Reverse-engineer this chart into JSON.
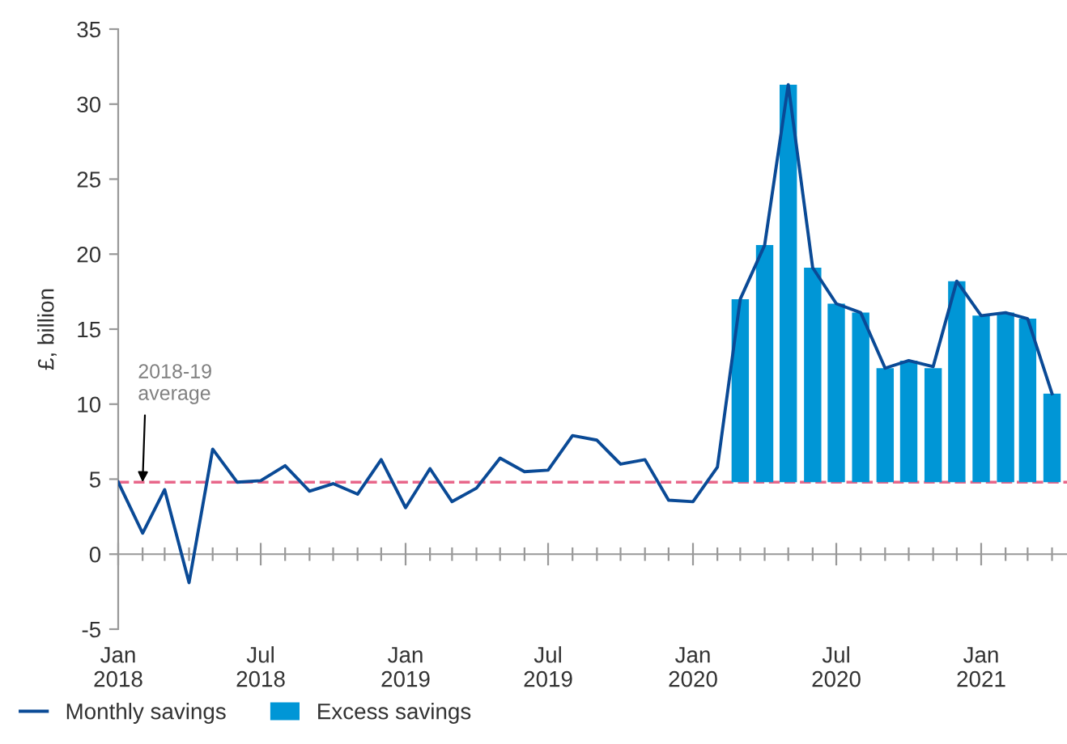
{
  "chart_data": {
    "type": "line",
    "ylabel": "£, billion",
    "x": [
      "2018-01",
      "2018-02",
      "2018-03",
      "2018-04",
      "2018-05",
      "2018-06",
      "2018-07",
      "2018-08",
      "2018-09",
      "2018-10",
      "2018-11",
      "2018-12",
      "2019-01",
      "2019-02",
      "2019-03",
      "2019-04",
      "2019-05",
      "2019-06",
      "2019-07",
      "2019-08",
      "2019-09",
      "2019-10",
      "2019-11",
      "2019-12",
      "2020-01",
      "2020-02",
      "2020-03",
      "2020-04",
      "2020-05",
      "2020-06",
      "2020-07",
      "2020-08",
      "2020-09",
      "2020-10",
      "2020-11",
      "2020-12",
      "2021-01",
      "2021-02",
      "2021-03",
      "2021-04"
    ],
    "series": [
      {
        "name": "Excess savings",
        "type": "bar",
        "color": "#0096d6",
        "x": [
          "2020-03",
          "2020-04",
          "2020-05",
          "2020-06",
          "2020-07",
          "2020-08",
          "2020-09",
          "2020-10",
          "2020-11",
          "2020-12",
          "2021-01",
          "2021-02",
          "2021-03",
          "2021-04"
        ],
        "base": [
          4.8,
          4.8,
          4.8,
          4.8,
          4.8,
          4.8,
          4.8,
          4.8,
          4.8,
          4.8,
          4.8,
          4.8,
          4.8,
          4.8
        ],
        "values": [
          12.2,
          15.8,
          26.5,
          14.3,
          11.9,
          11.3,
          7.6,
          8.1,
          7.6,
          13.4,
          11.1,
          11.3,
          10.9,
          5.9
        ]
      },
      {
        "name": "Monthly savings",
        "color": "#0a4a96",
        "values": [
          4.8,
          1.4,
          4.3,
          -1.9,
          7.0,
          4.8,
          4.9,
          5.9,
          4.2,
          4.7,
          4.0,
          6.3,
          3.1,
          5.7,
          3.5,
          4.4,
          6.4,
          5.5,
          5.6,
          7.9,
          7.6,
          6.0,
          6.3,
          3.6,
          3.5,
          5.8,
          17.0,
          20.6,
          31.3,
          19.1,
          16.7,
          16.1,
          12.4,
          12.9,
          12.5,
          18.2,
          15.9,
          16.1,
          15.7,
          10.7
        ]
      }
    ],
    "ylim": [
      -5,
      35
    ],
    "yticks": [
      -5,
      0,
      5,
      10,
      15,
      20,
      25,
      30,
      35
    ],
    "xlim": [
      "2018-01",
      "2021-04-20"
    ],
    "xticks": [
      {
        "value": "2018-01",
        "label": "Jan\n2018"
      },
      {
        "value": "2018-02",
        "label": null
      },
      {
        "value": "2018-03",
        "label": null
      },
      {
        "value": "2018-04",
        "label": null
      },
      {
        "value": "2018-05",
        "label": null
      },
      {
        "value": "2018-06",
        "label": null
      },
      {
        "value": "2018-07",
        "label": "Jul\n2018"
      },
      {
        "value": "2018-08",
        "label": null
      },
      {
        "value": "2018-09",
        "label": null
      },
      {
        "value": "2018-10",
        "label": null
      },
      {
        "value": "2018-11",
        "label": null
      },
      {
        "value": "2018-12",
        "label": null
      },
      {
        "value": "2019-01",
        "label": "Jan\n2019"
      },
      {
        "value": "2019-02",
        "label": null
      },
      {
        "value": "2019-03",
        "label": null
      },
      {
        "value": "2019-04",
        "label": null
      },
      {
        "value": "2019-05",
        "label": null
      },
      {
        "value": "2019-06",
        "label": null
      },
      {
        "value": "2019-07",
        "label": "Jul\n2019"
      },
      {
        "value": "2019-08",
        "label": null
      },
      {
        "value": "2019-09",
        "label": null
      },
      {
        "value": "2019-10",
        "label": null
      },
      {
        "value": "2019-11",
        "label": null
      },
      {
        "value": "2019-12",
        "label": null
      },
      {
        "value": "2020-01",
        "label": "Jan\n2020"
      },
      {
        "value": "2020-02",
        "label": null
      },
      {
        "value": "2020-03",
        "label": null
      },
      {
        "value": "2020-04",
        "label": null
      },
      {
        "value": "2020-05",
        "label": null
      },
      {
        "value": "2020-06",
        "label": null
      },
      {
        "value": "2020-07",
        "label": "Jul\n2020"
      },
      {
        "value": "2020-08",
        "label": null
      },
      {
        "value": "2020-09",
        "label": null
      },
      {
        "value": "2020-10",
        "label": null
      },
      {
        "value": "2020-11",
        "label": null
      },
      {
        "value": "2020-12",
        "label": null
      },
      {
        "value": "2021-01",
        "label": "Jan\n2021"
      },
      {
        "value": "2021-02",
        "label": null
      },
      {
        "value": "2021-03",
        "label": null
      },
      {
        "value": "2021-04",
        "label": null
      }
    ],
    "ref_lines": [
      {
        "axis": "y",
        "value": 4.8,
        "label": "2018-19\naverage",
        "color": "#e8678a",
        "line_style": "dashed"
      }
    ],
    "legend": "bottom left",
    "marker": "none",
    "line_style": "solid"
  }
}
